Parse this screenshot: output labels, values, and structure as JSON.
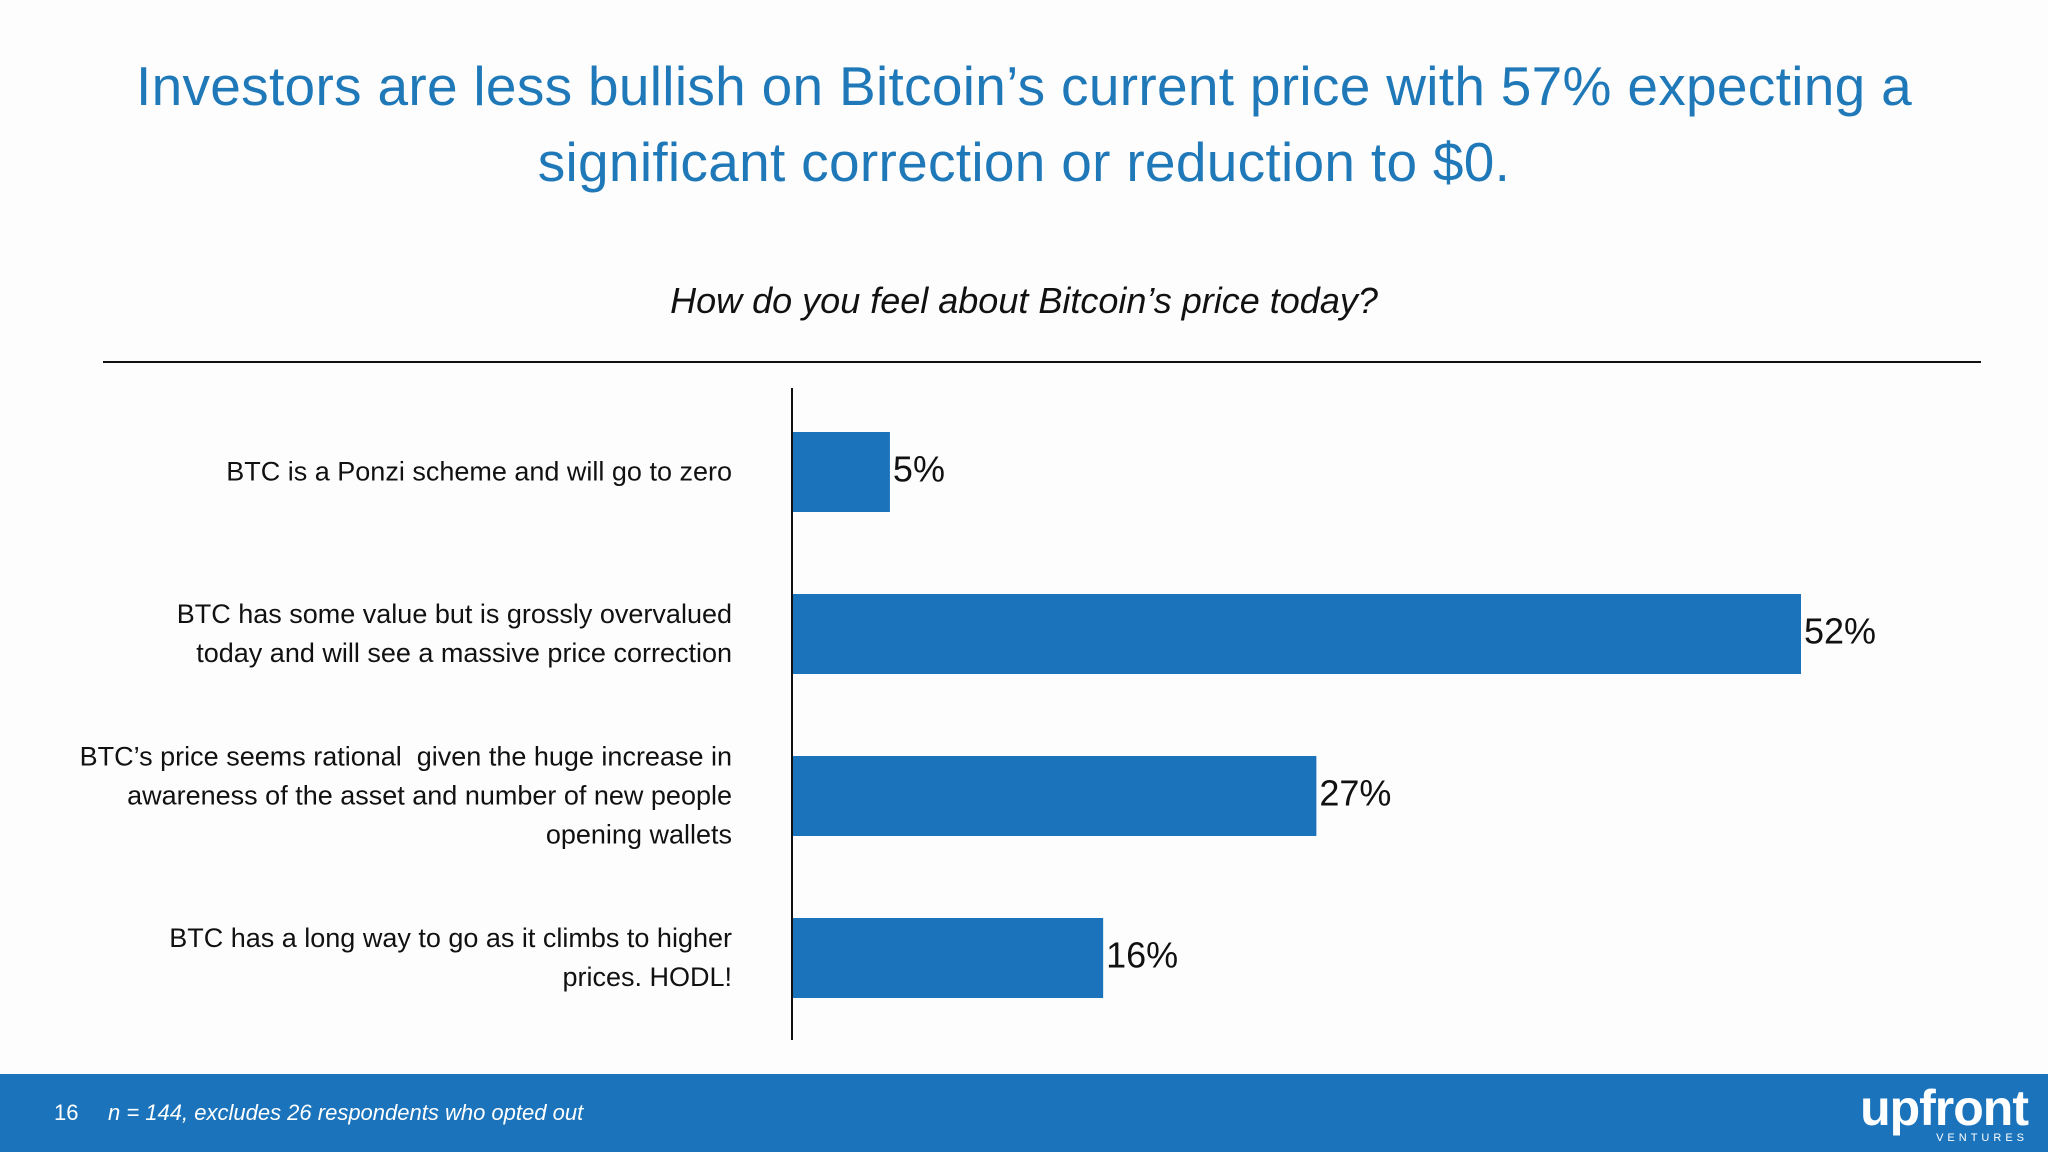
{
  "title": "Investors are less bullish on Bitcoin’s current price with 57% expecting a significant correction or reduction to $0.",
  "footer": {
    "page_number": "16",
    "footnote": "n = 144, excludes 26 respondents who opted out",
    "logo_text": "upfront",
    "logo_subtext": "VENTURES"
  },
  "colors": {
    "accent": "#1f78b8",
    "bar": "#1b74bb",
    "footer": "#1b74bb"
  },
  "chart_data": {
    "type": "bar",
    "orientation": "horizontal",
    "title": "How do you feel about Bitcoin’s price today?",
    "categories": [
      "BTC is a Ponzi scheme and will go to zero",
      "BTC has some value but is grossly overvalued today and will see a massive price correction",
      "BTC’s price seems rational  given the huge increase in awareness of the asset and number of new people opening wallets",
      "BTC has a long way to go as it climbs to higher prices. HODL!"
    ],
    "category_lines": [
      [
        "BTC is a Ponzi scheme and will go to zero"
      ],
      [
        "BTC has some value but is grossly overvalued",
        "today and will see a massive price correction"
      ],
      [
        "BTC’s price seems rational  given the huge increase in",
        "awareness of the asset and number of new people",
        "opening wallets"
      ],
      [
        "BTC has a long way to go as it climbs to higher",
        "prices. HODL!"
      ]
    ],
    "values": [
      5,
      52,
      27,
      16
    ],
    "value_labels": [
      "5%",
      "52%",
      "27%",
      "16%"
    ],
    "unit": "%",
    "xlim": [
      0,
      52
    ],
    "xlabel": "",
    "ylabel": "",
    "grid": false,
    "legend": false
  }
}
